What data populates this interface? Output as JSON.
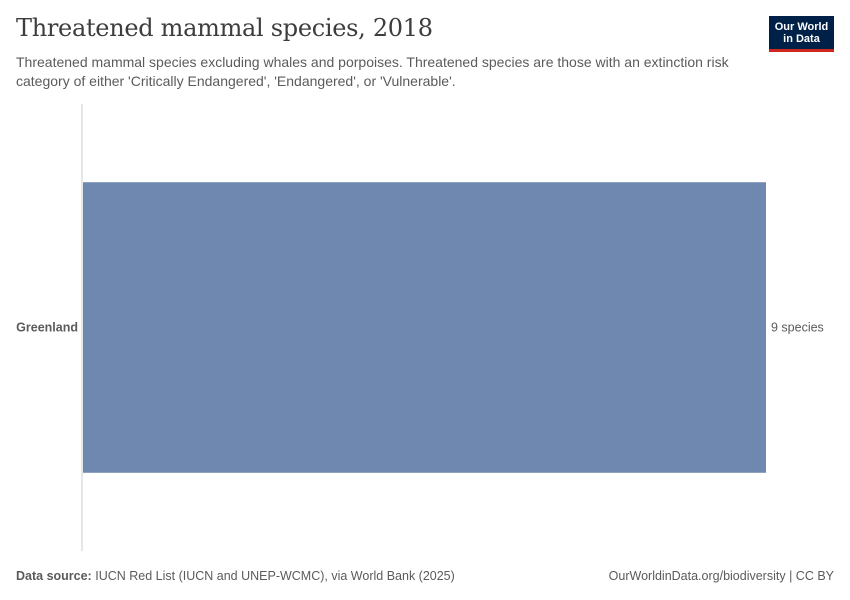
{
  "header": {
    "title": "Threatened mammal species, 2018",
    "subtitle": "Threatened mammal species excluding whales and porpoises. Threatened species are those with an extinction risk category of either 'Critically Endangered', 'Endangered', or 'Vulnerable'."
  },
  "logo": {
    "line1": "Our World",
    "line2": "in Data"
  },
  "footer": {
    "source_label": "Data source:",
    "source_text": "IUCN Red List (IUCN and UNEP-WCMC), via World Bank (2025)",
    "link_text": "OurWorldinData.org/biodiversity | CC BY"
  },
  "colors": {
    "bar": "#6f88b0",
    "axis": "#cccccc",
    "logo_bg": "#002147",
    "logo_accent": "#ce261e"
  },
  "chart_data": {
    "type": "bar",
    "orientation": "horizontal",
    "categories": [
      "Greenland"
    ],
    "values": [
      9
    ],
    "value_labels": [
      "9 species"
    ],
    "unit": "species",
    "xlim": [
      0,
      9
    ],
    "grid": false
  }
}
